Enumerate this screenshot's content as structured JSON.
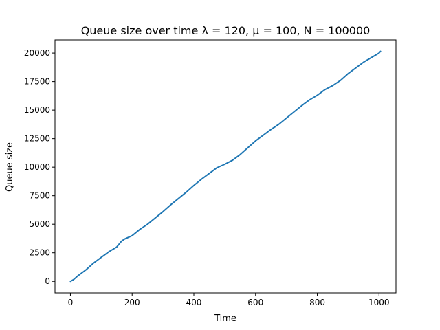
{
  "chart_data": {
    "type": "line",
    "title": "Queue size over time λ = 120, μ = 100, N = 100000",
    "xlabel": "Time",
    "ylabel": "Queue size",
    "xlim": [
      -50,
      1055
    ],
    "ylim": [
      -1010,
      21150
    ],
    "xticks": [
      0,
      200,
      400,
      600,
      800,
      1000
    ],
    "yticks": [
      0,
      2500,
      5000,
      7500,
      10000,
      12500,
      15000,
      17500,
      20000
    ],
    "xtick_labels": [
      "0",
      "200",
      "400",
      "600",
      "800",
      "1000"
    ],
    "ytick_labels": [
      "0",
      "2500",
      "5000",
      "7500",
      "10000",
      "12500",
      "15000",
      "17500",
      "20000"
    ],
    "grid": false,
    "series": [
      {
        "color": "#1f77b4",
        "x": [
          0,
          10,
          25,
          50,
          75,
          100,
          125,
          150,
          165,
          175,
          200,
          225,
          250,
          275,
          300,
          325,
          350,
          375,
          400,
          425,
          450,
          475,
          500,
          525,
          550,
          575,
          600,
          625,
          650,
          675,
          700,
          725,
          750,
          775,
          800,
          825,
          850,
          875,
          900,
          925,
          950,
          975,
          1000,
          1005
        ],
        "y": [
          0,
          150,
          500,
          1000,
          1600,
          2100,
          2600,
          3000,
          3500,
          3700,
          4000,
          4550,
          5000,
          5550,
          6100,
          6700,
          7250,
          7800,
          8400,
          8950,
          9450,
          9950,
          10250,
          10600,
          11100,
          11700,
          12300,
          12800,
          13300,
          13750,
          14300,
          14850,
          15400,
          15900,
          16300,
          16800,
          17150,
          17600,
          18200,
          18700,
          19200,
          19600,
          20000,
          20150
        ]
      }
    ]
  }
}
